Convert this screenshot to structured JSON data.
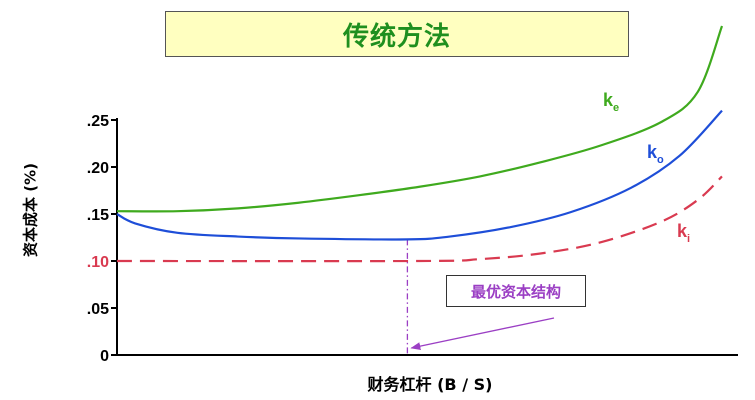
{
  "title": "传统方法",
  "chart_data": {
    "type": "line",
    "ylabel": "资本成本 (%)",
    "xlabel": "财务杠杆 (B / S)",
    "yticks": [
      ".25",
      ".20",
      ".15",
      ".10",
      ".05",
      "0"
    ],
    "ytick_values": [
      0.25,
      0.2,
      0.15,
      0.1,
      0.05,
      0
    ],
    "ylim": [
      0,
      0.27
    ],
    "xlim": [
      0,
      10
    ],
    "grid": false,
    "series": [
      {
        "name": "k",
        "subscript": "e",
        "color": "#3faa1e",
        "dash": false,
        "points": [
          [
            0,
            0.153
          ],
          [
            1,
            0.153
          ],
          [
            2,
            0.156
          ],
          [
            3,
            0.162
          ],
          [
            4,
            0.17
          ],
          [
            5,
            0.179
          ],
          [
            6,
            0.19
          ],
          [
            7,
            0.205
          ],
          [
            8,
            0.223
          ],
          [
            9,
            0.248
          ],
          [
            9.6,
            0.28
          ],
          [
            10,
            0.35
          ]
        ]
      },
      {
        "name": "k",
        "subscript": "o",
        "color": "#1e4ed8",
        "dash": false,
        "points": [
          [
            0,
            0.15
          ],
          [
            0.3,
            0.14
          ],
          [
            1,
            0.13
          ],
          [
            2,
            0.126
          ],
          [
            3,
            0.124
          ],
          [
            4.8,
            0.123
          ],
          [
            5.5,
            0.126
          ],
          [
            6.5,
            0.136
          ],
          [
            7.5,
            0.152
          ],
          [
            8.5,
            0.178
          ],
          [
            9.3,
            0.212
          ],
          [
            10,
            0.26
          ]
        ]
      },
      {
        "name": "k",
        "subscript": "i",
        "color": "#d93a50",
        "dash": true,
        "points": [
          [
            0,
            0.1
          ],
          [
            5,
            0.1
          ],
          [
            6,
            0.102
          ],
          [
            7,
            0.108
          ],
          [
            8,
            0.12
          ],
          [
            9,
            0.142
          ],
          [
            9.6,
            0.165
          ],
          [
            10,
            0.19
          ]
        ]
      }
    ],
    "optimal_x": 4.8,
    "annotation": {
      "text": "最优资本结构",
      "color": "#9b3fc4"
    }
  }
}
